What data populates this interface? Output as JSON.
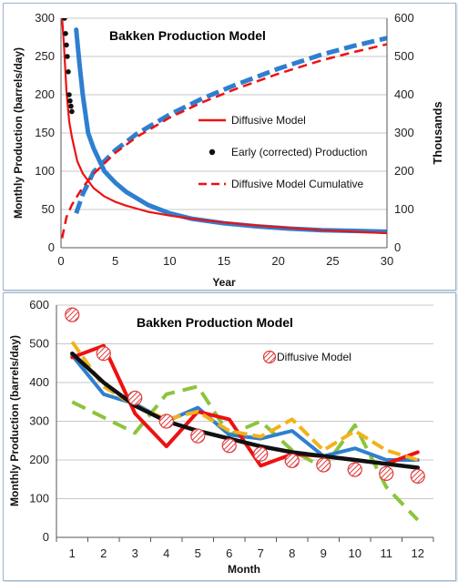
{
  "colors": {
    "red": "#ee1111",
    "blue": "#2e7fd0",
    "black": "#111111",
    "gold": "#f2b21a",
    "green": "#8cc43c",
    "hatch": "#e03a3a"
  },
  "chart_data": [
    {
      "type": "line",
      "title": "Bakken Production Model",
      "xlabel": "Year",
      "ylabel": "Monthly Production (barrels/day)",
      "y2label": "Thousands",
      "xlim": [
        0,
        30
      ],
      "ylim": [
        0,
        300
      ],
      "y2lim": [
        0,
        600
      ],
      "xticks": [
        "0",
        "5",
        "10",
        "15",
        "20",
        "25",
        "30"
      ],
      "yticks": [
        "0",
        "50",
        "100",
        "150",
        "200",
        "250",
        "300"
      ],
      "y2ticks": [
        "0",
        "100",
        "200",
        "300",
        "400",
        "500",
        "600"
      ],
      "legend_position": "center-right",
      "legend": [
        "Diffusive Model",
        "Early (corrected) Production",
        "Diffusive Model Cumulative"
      ],
      "series": [
        {
          "name": "",
          "axis": "left",
          "style": "solid-blue-thick",
          "x": [
            1.4,
            1.7,
            2,
            2.5,
            3,
            4,
            5,
            6,
            8,
            10,
            12,
            15,
            18,
            21,
            24,
            27,
            30
          ],
          "y": [
            285,
            240,
            200,
            150,
            130,
            100,
            85,
            73,
            56,
            45,
            38,
            32,
            28,
            25,
            23,
            22,
            21
          ]
        },
        {
          "name": "Diffusive Model",
          "axis": "left",
          "style": "solid-red",
          "x": [
            0.1,
            0.25,
            0.5,
            0.75,
            1,
            1.5,
            2,
            3,
            4,
            5,
            6,
            8,
            10,
            12,
            15,
            18,
            21,
            24,
            27,
            30
          ],
          "y": [
            300,
            270,
            205,
            165,
            145,
            113,
            97,
            78,
            67,
            60,
            55,
            47,
            42,
            38,
            33,
            29,
            26,
            23,
            21,
            19
          ]
        },
        {
          "name": "Early (corrected) Production",
          "axis": "left",
          "style": "dots-black",
          "x": [
            0.33,
            0.42,
            0.5,
            0.58,
            0.67,
            0.75,
            0.83,
            0.92,
            1
          ],
          "y": [
            300,
            280,
            265,
            250,
            230,
            200,
            192,
            185,
            178
          ]
        },
        {
          "name": "Diffusive Model Cumulative",
          "axis": "right",
          "style": "dashed-red",
          "x": [
            0.1,
            0.5,
            1,
            2,
            3,
            5,
            7,
            10,
            13,
            16,
            20,
            24,
            27,
            30
          ],
          "y": [
            25,
            80,
            112,
            158,
            193,
            248,
            290,
            340,
            380,
            414,
            455,
            490,
            512,
            532
          ]
        },
        {
          "name": "",
          "axis": "right",
          "style": "dashed-blue-thick",
          "x": [
            1.4,
            2,
            3,
            5,
            7,
            10,
            13,
            16,
            20,
            24,
            27,
            30
          ],
          "y": [
            90,
            140,
            198,
            255,
            298,
            348,
            390,
            425,
            468,
            505,
            528,
            548
          ]
        }
      ]
    },
    {
      "type": "line",
      "title": "Bakken Production Model",
      "xlabel": "Month",
      "ylabel": "Monthly Production (barrels/day)",
      "categories": [
        "1",
        "2",
        "3",
        "4",
        "5",
        "6",
        "7",
        "8",
        "9",
        "10",
        "11",
        "12"
      ],
      "ylim": [
        0,
        600
      ],
      "yticks": [
        "0",
        "100",
        "200",
        "300",
        "400",
        "500",
        "600"
      ],
      "legend_position": "top-right",
      "legend": [
        "Diffusive Model"
      ],
      "series": [
        {
          "name": "",
          "style": "solid-red",
          "values": [
            465,
            495,
            320,
            235,
            325,
            305,
            185,
            215,
            210,
            200,
            190,
            220
          ]
        },
        {
          "name": "",
          "style": "solid-blue",
          "values": [
            470,
            370,
            345,
            300,
            335,
            265,
            255,
            275,
            210,
            230,
            200,
            200
          ]
        },
        {
          "name": "",
          "style": "dashed-green",
          "values": [
            350,
            310,
            270,
            370,
            390,
            265,
            300,
            225,
            180,
            290,
            130,
            45
          ]
        },
        {
          "name": "",
          "style": "dashed-gold",
          "values": [
            505,
            390,
            340,
            305,
            325,
            275,
            260,
            305,
            225,
            275,
            225,
            200
          ]
        },
        {
          "name": "",
          "style": "solid-black",
          "values": [
            475,
            400,
            340,
            300,
            275,
            255,
            235,
            220,
            210,
            200,
            190,
            180
          ]
        },
        {
          "name": "Diffusive Model",
          "style": "hatched-markers",
          "values": [
            575,
            475,
            360,
            300,
            262,
            237,
            215,
            198,
            187,
            175,
            165,
            158
          ]
        }
      ]
    }
  ]
}
